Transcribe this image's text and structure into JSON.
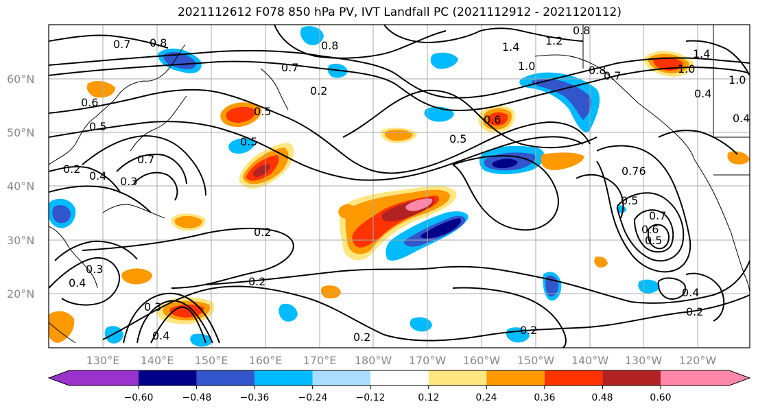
{
  "title": "2021112612 F078 850 hPa PV, IVT Landfall PC (2021112912 - 2021120112)",
  "map": {
    "lat_labels": [
      "60°N",
      "50°N",
      "40°N",
      "30°N",
      "20°N"
    ],
    "lon_labels": [
      "130°E",
      "140°E",
      "150°E",
      "160°E",
      "170°E",
      "180°W",
      "170°W",
      "160°W",
      "150°W",
      "140°W",
      "130°W",
      "120°W"
    ],
    "contour_labels": [
      "0.8",
      "0.7",
      "0.8",
      "0.7",
      "1.4",
      "1.2",
      "0.8",
      "1.0",
      "0.8",
      "0.7",
      "0.7",
      "0.5",
      "0.6",
      "0.5",
      "0.6",
      "0.5",
      "0.2",
      "0.5",
      "0.4",
      "0.3",
      "0.2",
      "0.2",
      "0.5",
      "0.76",
      "0.5",
      "0.7",
      "0.6",
      "0.4",
      "0.2",
      "0.3",
      "0.4",
      "0.2",
      "0.2",
      "0.4",
      "1.0",
      "1.4",
      "0.4",
      "1.0",
      "0.4",
      "0.3",
      "0.2"
    ]
  },
  "colorbar": {
    "ticks": [
      "−0.60",
      "−0.48",
      "−0.36",
      "−0.24",
      "−0.12",
      "0.12",
      "0.24",
      "0.36",
      "0.48",
      "0.60"
    ],
    "colors": [
      "#9933cc",
      "#000088",
      "#3355cc",
      "#00bbff",
      "#aaddff",
      "#ffffff",
      "#ffe680",
      "#ff9900",
      "#ff3300",
      "#b22222",
      "#ff88aa"
    ]
  },
  "fills": {
    "pink": "#ff88aa",
    "darkred": "#b22222",
    "red": "#ff3300",
    "orange": "#ff9900",
    "yellow": "#ffe680",
    "lightblue": "#aaddff",
    "cyan": "#00bbff",
    "blue": "#3355cc",
    "navy": "#000088"
  }
}
